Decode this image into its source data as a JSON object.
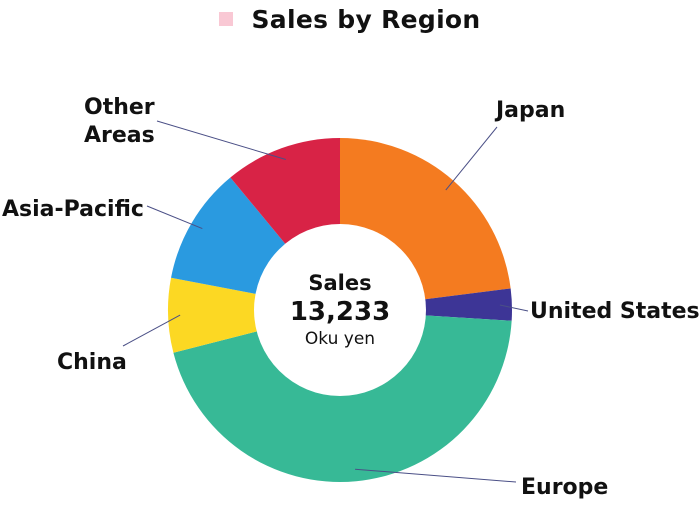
{
  "chart_data": {
    "type": "pie",
    "title": "Sales by Region",
    "legend": [
      {
        "name": "Sales by Region",
        "color": "#f9c8d4"
      }
    ],
    "center": {
      "label": "Sales",
      "total": "13,233",
      "unit": "Oku yen"
    },
    "slices": [
      {
        "name": "Japan",
        "lines": [
          "Japan"
        ],
        "percent": 23.0,
        "color": "#f47b20"
      },
      {
        "name": "United States",
        "lines": [
          "United States"
        ],
        "percent": 3.0,
        "color": "#3d3596"
      },
      {
        "name": "Europe",
        "lines": [
          "Europe"
        ],
        "percent": 45.0,
        "color": "#37b996"
      },
      {
        "name": "China",
        "lines": [
          "China"
        ],
        "percent": 7.0,
        "color": "#fcd823"
      },
      {
        "name": "Asia-Pacific",
        "lines": [
          "Asia-Pacific"
        ],
        "percent": 11.0,
        "color": "#2a9ae0"
      },
      {
        "name": "Other Areas",
        "lines": [
          "Other",
          "Areas"
        ],
        "percent": 11.0,
        "color": "#d82346"
      }
    ],
    "start_angle_deg": 0,
    "direction": "clockwise",
    "donut": true,
    "legend_position": "top"
  }
}
